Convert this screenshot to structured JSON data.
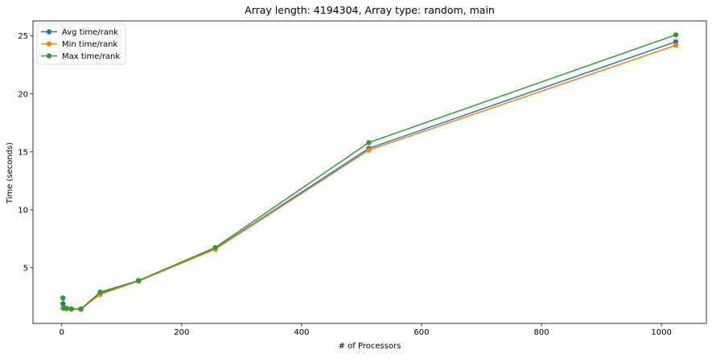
{
  "chart_data": {
    "type": "line",
    "title": "Array length: 4194304, Array type: random, main",
    "xlabel": "# of Processors",
    "ylabel": "Time (seconds)",
    "xlim": [
      -48,
      1075
    ],
    "ylim": [
      0.2,
      26.3
    ],
    "xticks": [
      0,
      200,
      400,
      600,
      800,
      1000
    ],
    "yticks": [
      5,
      10,
      15,
      20,
      25
    ],
    "grid": false,
    "legend_position": "upper-left",
    "x": [
      2,
      4,
      8,
      16,
      32,
      64,
      128,
      256,
      512,
      1024
    ],
    "series": [
      {
        "name": "Avg time/rank",
        "color": "#1f77b4",
        "marker": "circle",
        "values": [
          1.9,
          1.5,
          1.5,
          1.45,
          1.42,
          2.8,
          3.85,
          6.65,
          15.3,
          24.5
        ]
      },
      {
        "name": "Min time/rank",
        "color": "#ff7f0e",
        "marker": "circle",
        "values": [
          1.5,
          1.5,
          1.48,
          1.43,
          1.42,
          2.7,
          3.85,
          6.6,
          15.15,
          24.2
        ]
      },
      {
        "name": "Max time/rank",
        "color": "#2ca02c",
        "marker": "circle",
        "values": [
          2.4,
          1.55,
          1.5,
          1.45,
          1.45,
          2.9,
          3.9,
          6.75,
          15.8,
          25.1
        ]
      }
    ]
  }
}
